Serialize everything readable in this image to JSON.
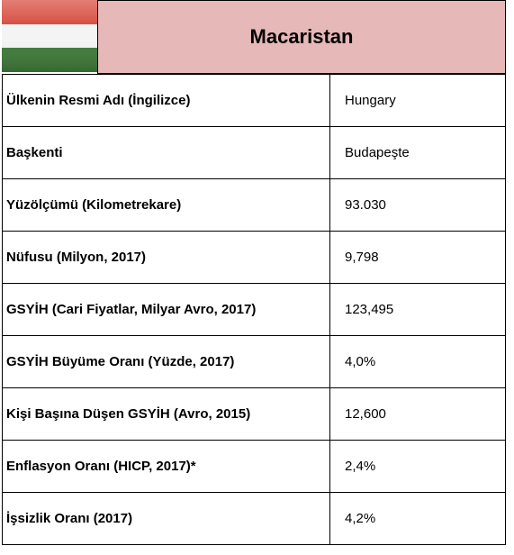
{
  "header": {
    "title": "Macaristan"
  },
  "table": {
    "rows": [
      [
        "Ülkenin Resmi Adı (İngilizce)",
        "Hungary"
      ],
      [
        "Başkenti",
        "Budapeşte"
      ],
      [
        "Yüzölçümü (Kilometrekare)",
        "93.030"
      ],
      [
        "Nüfusu (Milyon, 2017)",
        "9,798"
      ],
      [
        "GSYİH (Cari Fiyatlar, Milyar Avro, 2017)",
        "123,495"
      ],
      [
        "GSYİH Büyüme Oranı (Yüzde, 2017)",
        "4,0%"
      ],
      [
        "Kişi Başına Düşen GSYİH (Avro, 2015)",
        "12,600"
      ],
      [
        "Enflasyon Oranı (HICP, 2017)*",
        "2,4%"
      ],
      [
        "İşsizlik Oranı (2017)",
        "4,2%"
      ]
    ]
  }
}
